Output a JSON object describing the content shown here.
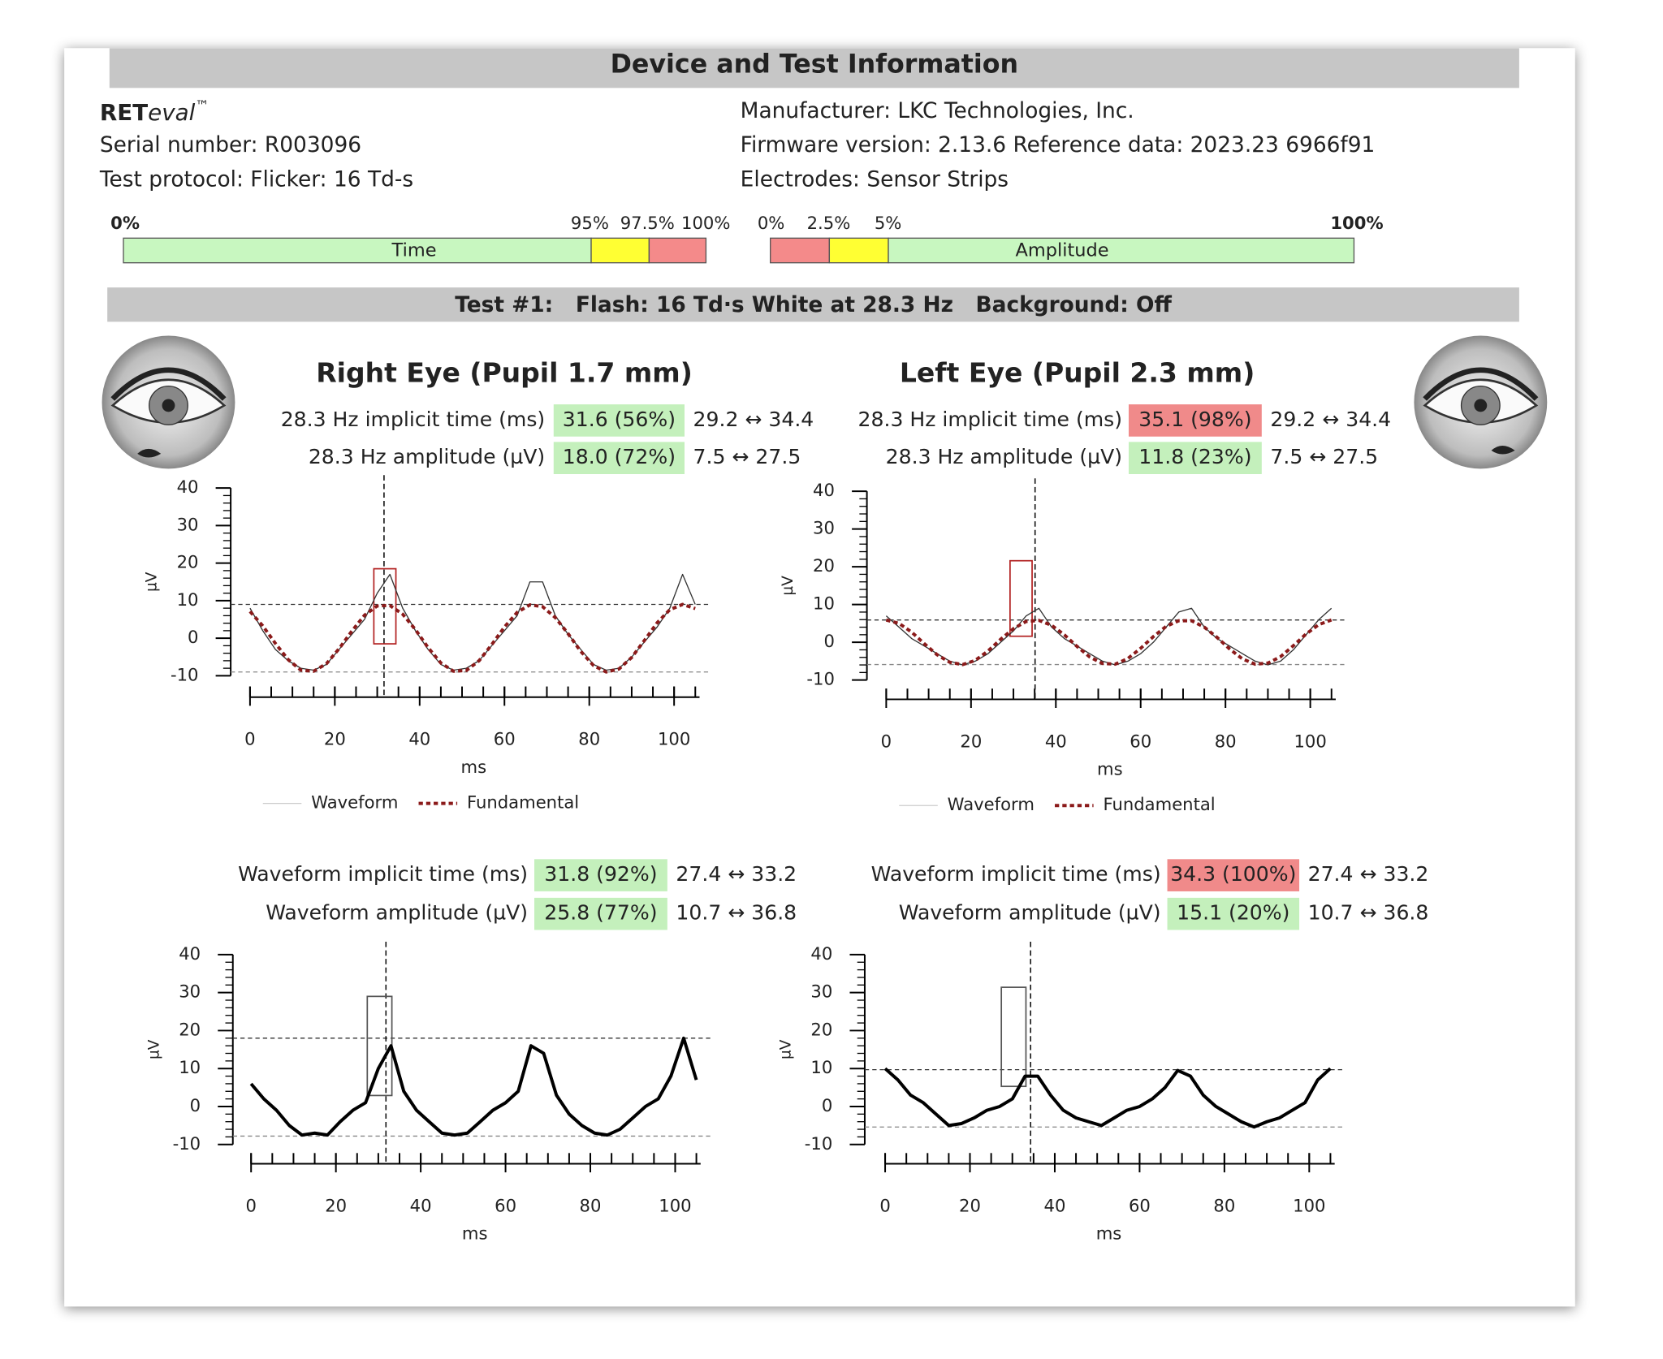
{
  "header": {
    "title": "Device and Test Information",
    "device": {
      "name": "RET",
      "italic": "eval",
      "mark": "™"
    },
    "serial": "Serial number: R003096",
    "protocol": "Test protocol: Flicker: 16 Td-s",
    "manufacturer": "Manufacturer: LKC Technologies, Inc.",
    "firmware": "Firmware version: 2.13.6 Reference data: 2023.23 6966f91",
    "electrodes": "Electrodes: Sensor Strips"
  },
  "scales": [
    {
      "name": "Time",
      "labels": [
        "0%",
        "95%",
        "97.5%",
        "100%"
      ]
    },
    {
      "name": "Amplitude",
      "labels": [
        "0%",
        "2.5%",
        "5%",
        "100%"
      ]
    }
  ],
  "test": {
    "title": "Test #1:   Flash: 16 Td·s White at 28.3 Hz   Background: Off"
  },
  "eyes": [
    {
      "title": "Right Eye (Pupil 1.7 mm)",
      "rows": [
        {
          "label": "28.3 Hz implicit time (ms)",
          "value": "31.6 (56%)",
          "range": "29.2 ↔ 34.4",
          "color": "#c4f0bc"
        },
        {
          "label": "28.3 Hz amplitude (µV)",
          "value": "18.0 (72%)",
          "range": "7.5 ↔ 27.5",
          "color": "#c4f0bc"
        }
      ],
      "bottom_rows": [
        {
          "label": "Waveform implicit time (ms)",
          "value": "31.8 (92%)",
          "range": "27.4 ↔ 33.2",
          "color": "#c4f0bc"
        },
        {
          "label": "Waveform amplitude (µV)",
          "value": "25.8 (77%)",
          "range": "10.7 ↔ 36.8",
          "color": "#c4f0bc"
        }
      ]
    },
    {
      "title": "Left Eye (Pupil 2.3 mm)",
      "rows": [
        {
          "label": "28.3 Hz implicit time (ms)",
          "value": "35.1 (98%)",
          "range": "29.2 ↔ 34.4",
          "color": "#f08a8a"
        },
        {
          "label": "28.3 Hz amplitude (µV)",
          "value": "11.8 (23%)",
          "range": "7.5 ↔ 27.5",
          "color": "#c4f0bc"
        }
      ],
      "bottom_rows": [
        {
          "label": "Waveform implicit time (ms)",
          "value": "34.3 (100%)",
          "range": "27.4 ↔ 33.2",
          "color": "#f08a8a"
        },
        {
          "label": "Waveform amplitude (µV)",
          "value": "15.1 (20%)",
          "range": "10.7 ↔ 36.8",
          "color": "#c4f0bc"
        }
      ]
    }
  ],
  "chart_data": [
    {
      "type": "line",
      "xlabel": "ms",
      "ylabel": "µV",
      "xlim": [
        0,
        106
      ],
      "ylim": [
        -10,
        40
      ],
      "xticks": [
        0,
        20,
        40,
        60,
        80,
        100
      ],
      "yticks": [
        -10,
        0,
        10,
        20,
        30,
        40
      ],
      "xminorticks": [
        0,
        5,
        10,
        15,
        20,
        25,
        30,
        35,
        40,
        45,
        50,
        55,
        60,
        65,
        70,
        75,
        80,
        85,
        90,
        95,
        100,
        105
      ],
      "yminorticks": [
        -10,
        -8,
        -6,
        -4,
        -2,
        0,
        2,
        4,
        6,
        8,
        10,
        12,
        14,
        16,
        18,
        20,
        22,
        24,
        26,
        28,
        30,
        32,
        34,
        36,
        38,
        40
      ],
      "x": [
        0,
        3,
        6,
        9,
        12,
        15,
        18,
        21,
        24,
        27,
        30,
        33,
        36,
        39,
        42,
        45,
        48,
        51,
        54,
        57,
        60,
        63,
        66,
        69,
        72,
        75,
        78,
        81,
        84,
        87,
        90,
        93,
        96,
        99,
        102,
        105
      ],
      "series": [
        {
          "name": "Waveform",
          "color": "#333333",
          "width": 1,
          "dash": "solid",
          "values": [
            8,
            2,
            -3,
            -6,
            -8,
            -8.5,
            -7,
            -3,
            1,
            5,
            12,
            17,
            8,
            2,
            -3,
            -7,
            -8.5,
            -8,
            -6,
            -2,
            2,
            6,
            15,
            15,
            6,
            1,
            -3,
            -7,
            -8.5,
            -8,
            -5,
            -1,
            3,
            8,
            17,
            9
          ]
        },
        {
          "name": "Fundamental",
          "color": "#8b1a1a",
          "width": 3,
          "dash": "dotted",
          "values": [
            7.1,
            3.3,
            -1.4,
            -5.7,
            -8.5,
            -8.8,
            -6.8,
            -2.8,
            1.9,
            6.1,
            8.6,
            8.7,
            6.4,
            2.3,
            -2.5,
            -6.6,
            -8.8,
            -8.6,
            -6.0,
            -1.7,
            3.0,
            6.9,
            8.9,
            8.4,
            5.5,
            1.2,
            -3.5,
            -7.3,
            -9.0,
            -8.2,
            -5.1,
            -0.6,
            4.1,
            7.6,
            9.0,
            7.9
          ]
        }
      ],
      "hlines": [
        9,
        -9
      ],
      "vline": 31.6,
      "box": {
        "x": [
          29.2,
          34.4
        ],
        "y": [
          -1.5,
          18.5
        ],
        "color": "#b22222"
      },
      "legend": true
    },
    {
      "type": "line",
      "xlabel": "ms",
      "ylabel": "µV",
      "xlim": [
        0,
        106
      ],
      "ylim": [
        -10,
        40
      ],
      "xticks": [
        0,
        20,
        40,
        60,
        80,
        100
      ],
      "yticks": [
        -10,
        0,
        10,
        20,
        30,
        40
      ],
      "xminorticks": [
        0,
        5,
        10,
        15,
        20,
        25,
        30,
        35,
        40,
        45,
        50,
        55,
        60,
        65,
        70,
        75,
        80,
        85,
        90,
        95,
        100,
        105
      ],
      "yminorticks": [
        -10,
        -8,
        -6,
        -4,
        -2,
        0,
        2,
        4,
        6,
        8,
        10,
        12,
        14,
        16,
        18,
        20,
        22,
        24,
        26,
        28,
        30,
        32,
        34,
        36,
        38,
        40
      ],
      "x": [
        0,
        3,
        6,
        9,
        12,
        15,
        18,
        21,
        24,
        27,
        30,
        33,
        36,
        39,
        42,
        45,
        48,
        51,
        54,
        57,
        60,
        63,
        66,
        69,
        72,
        75,
        78,
        81,
        84,
        87,
        90,
        93,
        96,
        99,
        102,
        105
      ],
      "series": [
        {
          "name": "Waveform",
          "color": "#333333",
          "width": 1,
          "dash": "solid",
          "values": [
            7,
            4,
            1,
            -1,
            -3,
            -5,
            -6,
            -5,
            -3,
            0,
            3,
            7,
            9,
            4,
            1,
            -1,
            -3,
            -5,
            -6,
            -5,
            -3,
            0,
            4,
            8,
            9,
            4,
            1,
            -1,
            -3,
            -5,
            -6,
            -5,
            -2,
            2,
            6,
            9
          ]
        },
        {
          "name": "Fundamental",
          "color": "#8b1a1a",
          "width": 3,
          "dash": "dotted",
          "values": [
            5.9,
            5.0,
            2.7,
            -0.4,
            -3.3,
            -5.3,
            -5.9,
            -4.8,
            -2.3,
            0.8,
            3.6,
            5.5,
            5.8,
            4.5,
            2.0,
            -1.1,
            -3.9,
            -5.6,
            -5.8,
            -4.3,
            -1.6,
            1.5,
            4.2,
            5.7,
            5.7,
            4.0,
            1.3,
            -1.8,
            -4.4,
            -5.8,
            -5.5,
            -3.8,
            -0.9,
            2.2,
            4.7,
            5.9
          ]
        }
      ],
      "hlines": [
        5.9,
        -5.9
      ],
      "vline": 35.1,
      "box": {
        "x": [
          29.2,
          34.4
        ],
        "y": [
          1.6,
          21.6
        ],
        "color": "#b22222"
      },
      "legend": true
    },
    {
      "type": "line",
      "xlabel": "ms",
      "ylabel": "µV",
      "xlim": [
        0,
        106
      ],
      "ylim": [
        -10,
        40
      ],
      "xticks": [
        0,
        20,
        40,
        60,
        80,
        100
      ],
      "yticks": [
        -10,
        0,
        10,
        20,
        30,
        40
      ],
      "xminorticks": [
        0,
        5,
        10,
        15,
        20,
        25,
        30,
        35,
        40,
        45,
        50,
        55,
        60,
        65,
        70,
        75,
        80,
        85,
        90,
        95,
        100,
        105
      ],
      "yminorticks": [
        -10,
        -8,
        -6,
        -4,
        -2,
        0,
        2,
        4,
        6,
        8,
        10,
        12,
        14,
        16,
        18,
        20,
        22,
        24,
        26,
        28,
        30,
        32,
        34,
        36,
        38,
        40
      ],
      "x": [
        0,
        3,
        6,
        9,
        12,
        15,
        18,
        21,
        24,
        27,
        30,
        33,
        36,
        39,
        42,
        45,
        48,
        51,
        54,
        57,
        60,
        63,
        66,
        69,
        72,
        75,
        78,
        81,
        84,
        87,
        90,
        93,
        96,
        99,
        102,
        105
      ],
      "series": [
        {
          "color": "#000000",
          "width": 3,
          "dash": "solid",
          "values": [
            6,
            2,
            -1,
            -5,
            -7.5,
            -7,
            -7.5,
            -4,
            -1,
            1,
            10,
            16,
            4,
            -1,
            -4,
            -7,
            -7.5,
            -7,
            -4,
            -1,
            1,
            4,
            16,
            14,
            3,
            -2,
            -5,
            -7,
            -7.5,
            -6,
            -3,
            0,
            2,
            8,
            18,
            7
          ]
        }
      ],
      "hlines": [
        18,
        -7.8
      ],
      "vline": 31.8,
      "box": {
        "x": [
          27.4,
          33.2
        ],
        "y": [
          2.9,
          29
        ],
        "color": "#555555"
      },
      "legend": false
    },
    {
      "type": "line",
      "xlabel": "ms",
      "ylabel": "µV",
      "xlim": [
        0,
        106
      ],
      "ylim": [
        -10,
        40
      ],
      "xticks": [
        0,
        20,
        40,
        60,
        80,
        100
      ],
      "yticks": [
        -10,
        0,
        10,
        20,
        30,
        40
      ],
      "xminorticks": [
        0,
        5,
        10,
        15,
        20,
        25,
        30,
        35,
        40,
        45,
        50,
        55,
        60,
        65,
        70,
        75,
        80,
        85,
        90,
        95,
        100,
        105
      ],
      "yminorticks": [
        -10,
        -8,
        -6,
        -4,
        -2,
        0,
        2,
        4,
        6,
        8,
        10,
        12,
        14,
        16,
        18,
        20,
        22,
        24,
        26,
        28,
        30,
        32,
        34,
        36,
        38,
        40
      ],
      "x": [
        0,
        3,
        6,
        9,
        12,
        15,
        18,
        21,
        24,
        27,
        30,
        33,
        36,
        39,
        42,
        45,
        48,
        51,
        54,
        57,
        60,
        63,
        66,
        69,
        72,
        75,
        78,
        81,
        84,
        87,
        90,
        93,
        96,
        99,
        102,
        105
      ],
      "series": [
        {
          "color": "#000000",
          "width": 3,
          "dash": "solid",
          "values": [
            10,
            7,
            3,
            1,
            -2,
            -5,
            -4.5,
            -3,
            -1,
            0,
            2,
            8,
            8,
            3,
            -1,
            -3,
            -4,
            -5,
            -3,
            -1,
            0,
            2,
            5,
            9.5,
            8,
            3,
            0,
            -2,
            -4,
            -5.4,
            -4,
            -3,
            -1,
            1,
            7,
            10
          ]
        }
      ],
      "hlines": [
        9.7,
        -5.4
      ],
      "vline": 34.3,
      "box": {
        "x": [
          27.4,
          33.2
        ],
        "y": [
          5.3,
          31.4
        ],
        "color": "#555555"
      },
      "legend": false
    }
  ]
}
